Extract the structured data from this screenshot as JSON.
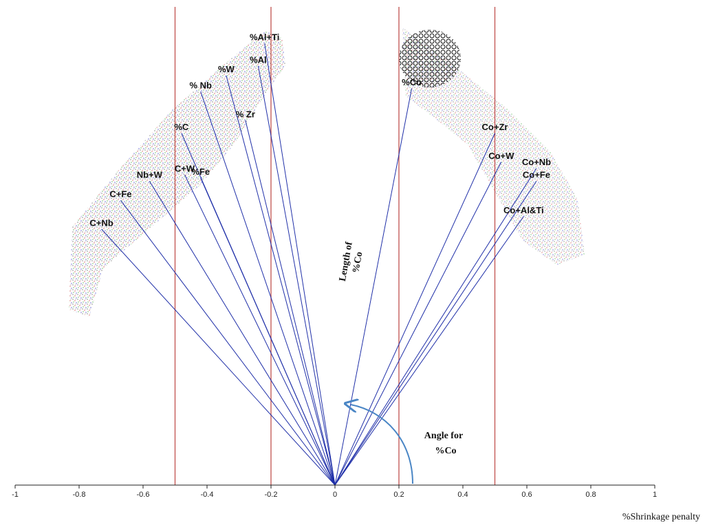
{
  "chart_data": {
    "type": "biplot",
    "x_label": "%Shrinkage penalty",
    "xlim": [
      -1,
      1
    ],
    "xticks": [
      -1,
      -0.8,
      -0.6,
      -0.4,
      -0.2,
      0,
      0.2,
      0.4,
      0.6,
      0.8,
      1
    ],
    "reference_lines": [
      -0.5,
      -0.2,
      0.2,
      0.5
    ],
    "reference_color": "#c0504d",
    "vector_color": "#1f2fa8",
    "vectors": [
      {
        "name": "%Al+Ti",
        "x": -0.22,
        "y": 1.38
      },
      {
        "name": "%Al",
        "x": -0.24,
        "y": 1.31
      },
      {
        "name": "%W",
        "x": -0.34,
        "y": 1.28
      },
      {
        "name": "% Nb",
        "x": -0.42,
        "y": 1.23
      },
      {
        "name": "% Zr",
        "x": -0.28,
        "y": 1.14
      },
      {
        "name": "%C",
        "x": -0.48,
        "y": 1.1
      },
      {
        "name": "C+W",
        "x": -0.47,
        "y": 0.97
      },
      {
        "name": "%Fe",
        "x": -0.42,
        "y": 0.96
      },
      {
        "name": "Nb+W",
        "x": -0.58,
        "y": 0.95
      },
      {
        "name": "C+Fe",
        "x": -0.67,
        "y": 0.89
      },
      {
        "name": "C+Nb",
        "x": -0.73,
        "y": 0.8
      },
      {
        "name": "%Co",
        "x": 0.24,
        "y": 1.24
      },
      {
        "name": "Co+Zr",
        "x": 0.5,
        "y": 1.1
      },
      {
        "name": "Co+W",
        "x": 0.52,
        "y": 1.01
      },
      {
        "name": "Co+Nb",
        "x": 0.63,
        "y": 0.99
      },
      {
        "name": "Co+Fe",
        "x": 0.63,
        "y": 0.95
      },
      {
        "name": "Co+Al&Ti",
        "x": 0.59,
        "y": 0.84
      }
    ],
    "annotations": [
      [
        "Length of",
        "%Co"
      ],
      [
        "Angle for",
        "%Co"
      ]
    ]
  }
}
